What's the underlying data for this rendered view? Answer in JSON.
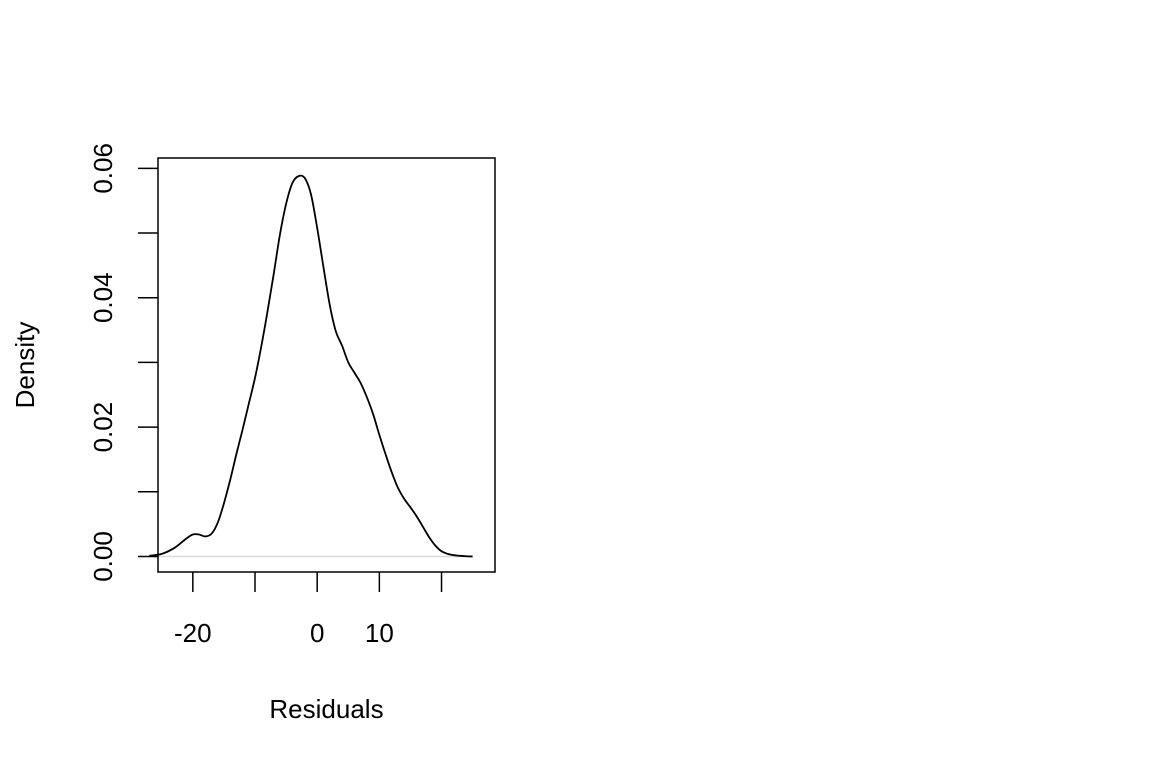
{
  "chart_data": {
    "type": "line",
    "title": "",
    "xlabel": "Residuals",
    "ylabel": "Density",
    "xlim": [
      -25.6,
      28.6
    ],
    "ylim": [
      -0.0024,
      0.0616
    ],
    "x_ticks": [
      -20,
      -10,
      0,
      10,
      20
    ],
    "x_tick_labels": [
      "-20",
      "",
      "0",
      "10",
      ""
    ],
    "y_ticks": [
      0.0,
      0.01,
      0.02,
      0.03,
      0.04,
      0.05,
      0.06
    ],
    "y_tick_labels": [
      "0.00",
      "",
      "0.02",
      "",
      "0.04",
      "",
      "0.06"
    ],
    "grid": false,
    "baseline": 0,
    "colors": {
      "line": "#000000",
      "baseline": "#d9d9d9",
      "frame": "#000000"
    },
    "series": [
      {
        "x": [
          -27,
          -25,
          -23,
          -21,
          -20,
          -19,
          -18,
          -17,
          -16,
          -15,
          -14,
          -13,
          -12,
          -11,
          -10,
          -9,
          -8,
          -7,
          -6,
          -5,
          -4,
          -3,
          -2,
          -1,
          0,
          1,
          2,
          3,
          4,
          5,
          6,
          7,
          8,
          9,
          10,
          11,
          12,
          13,
          14,
          15,
          16,
          17,
          18,
          19,
          20,
          21,
          22,
          23,
          24,
          25
        ],
        "y": [
          0.0001,
          0.0004,
          0.0013,
          0.0028,
          0.0034,
          0.0034,
          0.0031,
          0.0035,
          0.0052,
          0.0082,
          0.0118,
          0.0158,
          0.0196,
          0.0236,
          0.0276,
          0.0324,
          0.0378,
          0.0436,
          0.0497,
          0.0545,
          0.0577,
          0.0588,
          0.0585,
          0.056,
          0.0508,
          0.0448,
          0.039,
          0.0348,
          0.0326,
          0.03,
          0.0284,
          0.0268,
          0.0246,
          0.022,
          0.0188,
          0.0158,
          0.013,
          0.0106,
          0.0089,
          0.0076,
          0.0062,
          0.0046,
          0.003,
          0.0017,
          0.0008,
          0.0004,
          0.0002,
          0.0001,
          3e-05,
          0.0
        ]
      }
    ]
  }
}
